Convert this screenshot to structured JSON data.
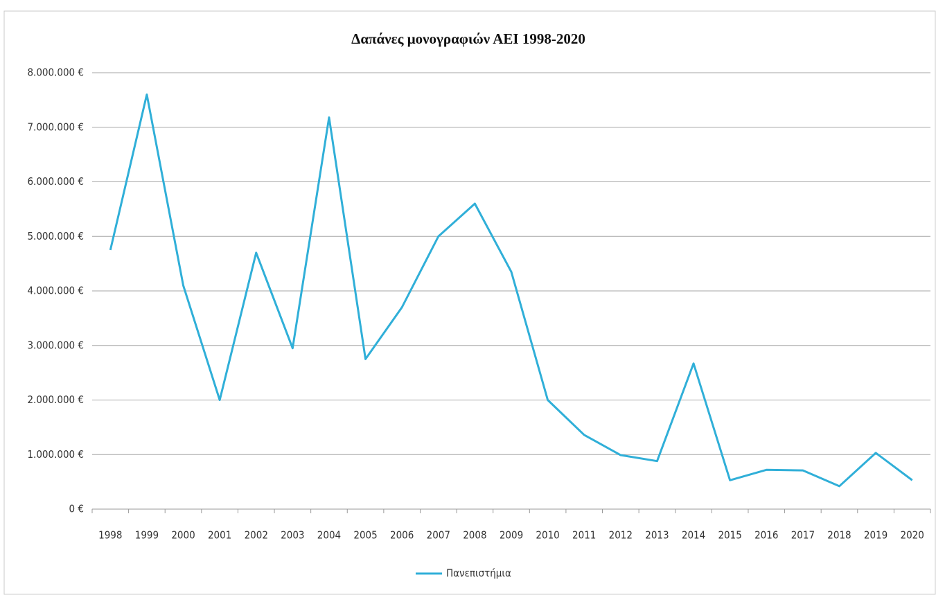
{
  "chart_data": {
    "type": "line",
    "title": "Δαπάνες μονογραφιών ΑΕΙ 1998-2020",
    "categories": [
      "1998",
      "1999",
      "2000",
      "2001",
      "2002",
      "2003",
      "2004",
      "2005",
      "2006",
      "2007",
      "2008",
      "2009",
      "2010",
      "2011",
      "2012",
      "2013",
      "2014",
      "2015",
      "2016",
      "2017",
      "2018",
      "2019",
      "2020"
    ],
    "series": [
      {
        "name": "Πανεπιστήμια",
        "color": "#30afd8",
        "values": [
          4750000,
          7600000,
          4100000,
          2000000,
          4700000,
          2950000,
          7180000,
          2750000,
          3700000,
          5000000,
          5600000,
          4350000,
          2000000,
          1360000,
          990000,
          880000,
          2670000,
          530000,
          720000,
          710000,
          420000,
          1030000,
          530000
        ]
      }
    ],
    "ylim": [
      0,
      8000000
    ],
    "yticks": [
      {
        "value": 0,
        "label": "0 €"
      },
      {
        "value": 1000000,
        "label": "1.000.000 €"
      },
      {
        "value": 2000000,
        "label": "2.000.000 €"
      },
      {
        "value": 3000000,
        "label": "3.000.000 €"
      },
      {
        "value": 4000000,
        "label": "4.000.000 €"
      },
      {
        "value": 5000000,
        "label": "5.000.000 €"
      },
      {
        "value": 6000000,
        "label": "6.000.000 €"
      },
      {
        "value": 7000000,
        "label": "7.000.000 €"
      },
      {
        "value": 8000000,
        "label": "8.000.000 €"
      }
    ],
    "grid": true,
    "legend": "bottom"
  }
}
